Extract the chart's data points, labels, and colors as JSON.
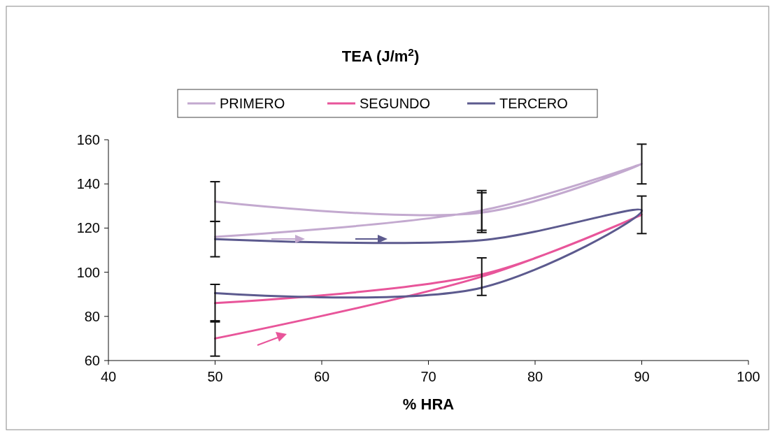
{
  "chart_data": {
    "type": "line",
    "title": "TEA (J/m$^{2}$)",
    "xlabel": "% HRA",
    "xlim": [
      40,
      100
    ],
    "xticks": [
      40,
      50,
      60,
      70,
      80,
      90,
      100
    ],
    "ylim": [
      60,
      160
    ],
    "yticks": [
      60,
      80,
      100,
      120,
      140,
      160
    ],
    "grid": false,
    "legend": "top",
    "marker": "none",
    "line_style": "solid",
    "series": [
      {
        "name": "PRIMERO",
        "color": "#c3a9cf",
        "x": [
          50,
          75,
          90,
          75,
          50
        ],
        "values": [
          116,
          128,
          149,
          127,
          132
        ],
        "errors": [
          null,
          9,
          9,
          9,
          9
        ]
      },
      {
        "name": "SEGUNDO",
        "color": "#e8559a",
        "x": [
          50,
          75,
          90,
          75,
          50
        ],
        "values": [
          70,
          98,
          126,
          99,
          86
        ],
        "errors": [
          8,
          8.5,
          8.5,
          null,
          8.5
        ]
      },
      {
        "name": "TERCERO",
        "color": "#5c5a8e",
        "x": [
          50,
          75,
          90,
          75,
          50
        ],
        "values": [
          115,
          114.5,
          128,
          93,
          90.5
        ],
        "errors": [
          8,
          null,
          null,
          null,
          null
        ]
      }
    ]
  }
}
